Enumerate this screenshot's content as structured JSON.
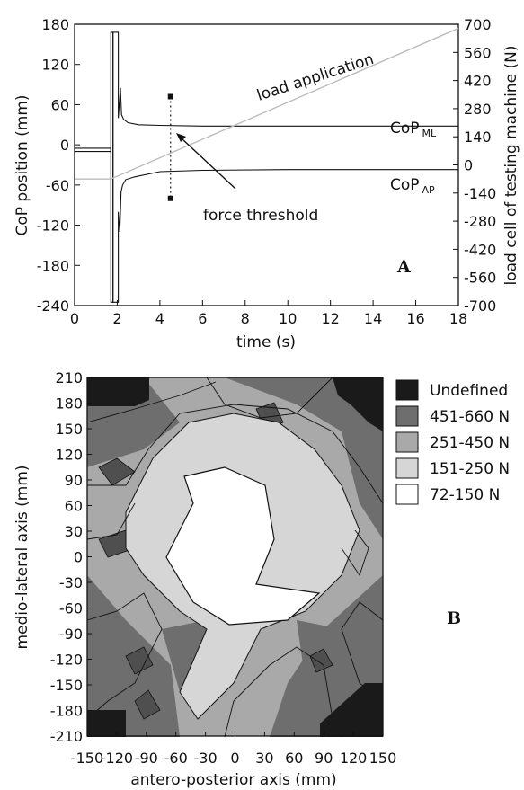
{
  "chart_data": [
    {
      "panel": "A",
      "type": "line",
      "xlabel": "time (s)",
      "ylabel": "CoP position (mm)",
      "y2label": "load cell of testing machine (N)",
      "xlim": [
        0,
        18
      ],
      "ylim": [
        -240,
        180
      ],
      "y2lim": [
        -700,
        700
      ],
      "xticks": [
        "0",
        "2",
        "4",
        "6",
        "8",
        "10",
        "12",
        "14",
        "16",
        "18"
      ],
      "yticks": [
        "180",
        "120",
        "60",
        "0",
        "-60",
        "-120",
        "-180",
        "-240"
      ],
      "y2ticks": [
        "700",
        "560",
        "420",
        "280",
        "140",
        "0",
        "-140",
        "-280",
        "-420",
        "-560",
        "-700"
      ],
      "annotations": {
        "load_application": "load application",
        "cop_ml": "CoP",
        "cop_ml_sub": "ML",
        "cop_ap": "CoP",
        "cop_ap_sub": "AP",
        "force_threshold": "force threshold"
      },
      "series": [
        {
          "name": "CoP ML",
          "axis": "left",
          "x": [
            0,
            1.7,
            1.7,
            1.8,
            1.8,
            2.05,
            2.05,
            2.15,
            2.2,
            2.3,
            2.5,
            3,
            4,
            6,
            10,
            18
          ],
          "y": [
            -5,
            -5,
            -235,
            -235,
            168,
            168,
            40,
            85,
            45,
            38,
            33,
            30,
            29,
            28,
            28,
            28
          ]
        },
        {
          "name": "CoP AP",
          "axis": "left",
          "x": [
            0,
            1.7,
            1.7,
            1.8,
            1.8,
            2.05,
            2.05,
            2.12,
            2.18,
            2.25,
            2.4,
            2.8,
            4,
            6,
            10,
            18
          ],
          "y": [
            -10,
            -10,
            168,
            168,
            -235,
            -235,
            -100,
            -130,
            -70,
            -60,
            -52,
            -48,
            -40,
            -38,
            -37,
            -37
          ]
        },
        {
          "name": "load application",
          "axis": "right",
          "x": [
            0,
            1.7,
            18
          ],
          "y": [
            -70,
            -70,
            680
          ]
        }
      ],
      "threshold_line": {
        "x": 4.5,
        "markers_y": [
          72,
          -80
        ]
      }
    },
    {
      "panel": "B",
      "type": "heatmap",
      "xlabel": "antero-posterior axis (mm)",
      "ylabel": "medio-lateral axis (mm)",
      "xlim": [
        -150,
        150
      ],
      "ylim": [
        -210,
        210
      ],
      "xticks": [
        "-150",
        "-120",
        "-90",
        "-60",
        "-30",
        "0",
        "30",
        "60",
        "90",
        "120",
        "150"
      ],
      "yticks": [
        "210",
        "180",
        "150",
        "120",
        "90",
        "60",
        "30",
        "0",
        "-30",
        "-60",
        "-90",
        "-120",
        "-150",
        "-180",
        "-210"
      ],
      "legend": [
        {
          "label": "Undefined",
          "color": "#1a1a1a"
        },
        {
          "label": "451-660 N",
          "color": "#6e6e6e"
        },
        {
          "label": "251-450 N",
          "color": "#a9a9a9"
        },
        {
          "label": "151-250 N",
          "color": "#d6d6d6"
        },
        {
          "label": "72-150 N",
          "color": "#ffffff"
        }
      ],
      "legend_position": "right"
    }
  ],
  "labels": {
    "panel_a": "A",
    "panel_b": "B"
  }
}
